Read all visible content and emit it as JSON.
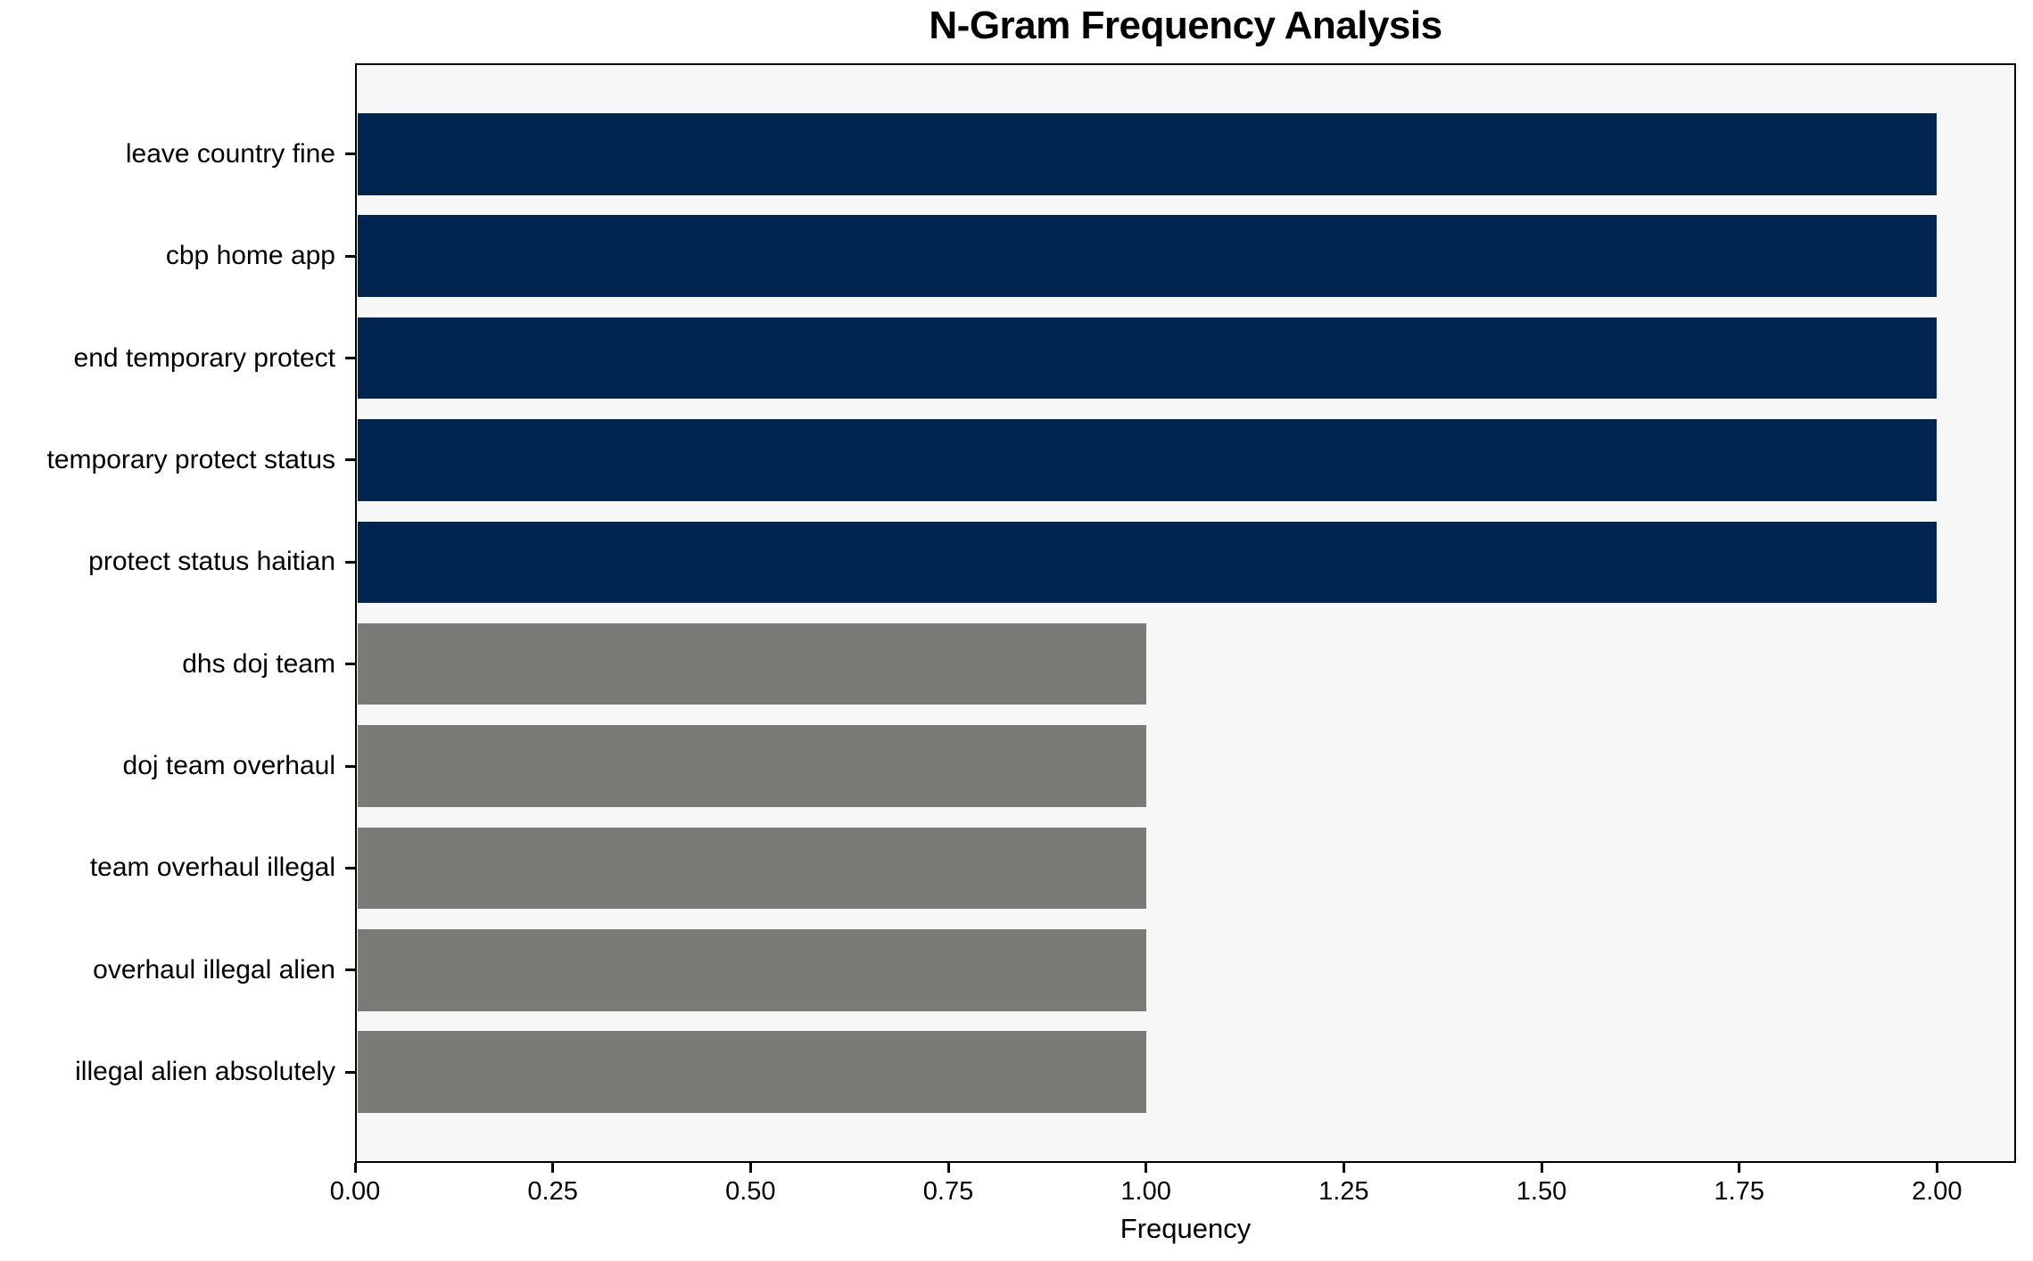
{
  "colors": {
    "navy": "#00254e",
    "gray": "#7a7a77",
    "plot_background": "#f7f7f7",
    "figure_background": "#ffffff",
    "spine": "#000000",
    "text": "#000000"
  },
  "chart_data": {
    "type": "bar",
    "orientation": "horizontal",
    "title": "N-Gram Frequency Analysis",
    "xlabel": "Frequency",
    "ylabel": "",
    "categories": [
      "leave country fine",
      "cbp home app",
      "end temporary protect",
      "temporary protect status",
      "protect status haitian",
      "dhs doj team",
      "doj team overhaul",
      "team overhaul illegal",
      "overhaul illegal alien",
      "illegal alien absolutely"
    ],
    "values": [
      2,
      2,
      2,
      2,
      2,
      1,
      1,
      1,
      1,
      1
    ],
    "bar_colors": [
      "#00254e",
      "#00254e",
      "#00254e",
      "#00254e",
      "#00254e",
      "#7a7a77",
      "#7a7a77",
      "#7a7a77",
      "#7a7a77",
      "#7a7a77"
    ],
    "xlim": [
      0,
      2.1
    ],
    "xticks": [
      {
        "value": 0.0,
        "label": "0.00"
      },
      {
        "value": 0.25,
        "label": "0.25"
      },
      {
        "value": 0.5,
        "label": "0.50"
      },
      {
        "value": 0.75,
        "label": "0.75"
      },
      {
        "value": 1.0,
        "label": "1.00"
      },
      {
        "value": 1.25,
        "label": "1.25"
      },
      {
        "value": 1.5,
        "label": "1.50"
      },
      {
        "value": 1.75,
        "label": "1.75"
      },
      {
        "value": 2.0,
        "label": "2.00"
      }
    ],
    "grid": false,
    "legend": false
  }
}
